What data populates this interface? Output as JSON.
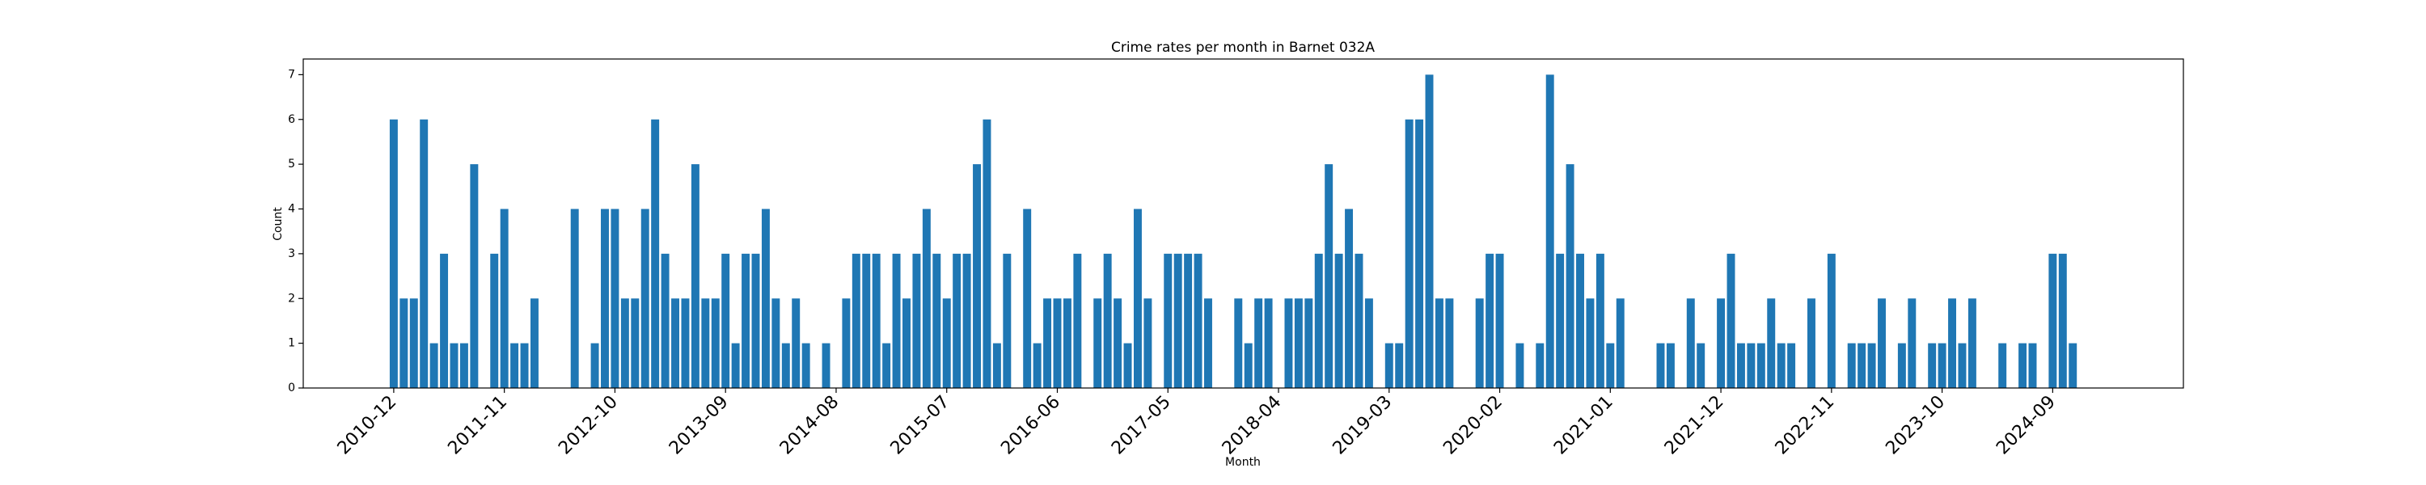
{
  "chart_data": {
    "type": "bar",
    "title": "Crime rates per month in Barnet 032A",
    "xlabel": "Month",
    "ylabel": "Count",
    "color": "#1f77b4",
    "categories": [
      "2010-12",
      null,
      null,
      null,
      null,
      null,
      null,
      null,
      null,
      null,
      null,
      "2011-11",
      null,
      null,
      null,
      null,
      null,
      null,
      null,
      null,
      null,
      null,
      "2012-10",
      null,
      null,
      null,
      null,
      null,
      null,
      null,
      null,
      null,
      null,
      "2013-09",
      null,
      null,
      null,
      null,
      null,
      null,
      null,
      null,
      null,
      null,
      "2014-08",
      null,
      null,
      null,
      null,
      null,
      null,
      null,
      null,
      null,
      null,
      "2015-07",
      null,
      null,
      null,
      null,
      null,
      null,
      null,
      null,
      null,
      null,
      "2016-06",
      null,
      null,
      null,
      null,
      null,
      null,
      null,
      null,
      null,
      null,
      "2017-05",
      null,
      null,
      null,
      null,
      null,
      null,
      null,
      null,
      null,
      null,
      "2018-04",
      null,
      null,
      null,
      null,
      null,
      null,
      null,
      null,
      null,
      null,
      "2019-03",
      null,
      null,
      null,
      null,
      null,
      null,
      null,
      null,
      null,
      null,
      "2020-02",
      null,
      null,
      null,
      null,
      null,
      null,
      null,
      null,
      null,
      null,
      "2021-01",
      null,
      null,
      null,
      null,
      null,
      null,
      null,
      null,
      null,
      null,
      "2021-12",
      null,
      null,
      null,
      null,
      null,
      null,
      null,
      null,
      null,
      null,
      "2022-11",
      null,
      null,
      null,
      null,
      null,
      null,
      null,
      null,
      null,
      null,
      "2023-10",
      null,
      null,
      null,
      null,
      null,
      null,
      null,
      null,
      null,
      null,
      "2024-09",
      null,
      null
    ],
    "values": [
      6,
      2,
      2,
      6,
      1,
      3,
      1,
      1,
      5,
      null,
      3,
      4,
      1,
      1,
      2,
      null,
      null,
      null,
      4,
      null,
      1,
      4,
      4,
      2,
      2,
      4,
      6,
      3,
      2,
      2,
      5,
      2,
      2,
      3,
      1,
      3,
      3,
      4,
      2,
      1,
      2,
      1,
      null,
      1,
      null,
      2,
      3,
      3,
      3,
      1,
      3,
      2,
      3,
      4,
      3,
      2,
      3,
      3,
      5,
      6,
      1,
      3,
      null,
      4,
      1,
      2,
      2,
      2,
      3,
      null,
      2,
      3,
      2,
      1,
      4,
      2,
      null,
      3,
      3,
      3,
      3,
      2,
      null,
      null,
      2,
      1,
      2,
      2,
      null,
      2,
      2,
      2,
      3,
      5,
      3,
      4,
      3,
      2,
      null,
      1,
      1,
      6,
      6,
      7,
      2,
      2,
      null,
      null,
      2,
      3,
      3,
      null,
      1,
      null,
      1,
      7,
      3,
      5,
      3,
      2,
      3,
      1,
      2,
      null,
      null,
      null,
      1,
      1,
      null,
      2,
      1,
      null,
      2,
      3,
      1,
      1,
      1,
      2,
      1,
      1,
      null,
      2,
      null,
      3,
      null,
      1,
      1,
      1,
      2,
      null,
      1,
      2,
      null,
      1,
      1,
      2,
      1,
      2,
      null,
      null,
      1,
      null,
      1,
      1,
      null,
      3,
      3,
      1
    ],
    "ylim": [
      0,
      7.35
    ],
    "yticks": [
      0,
      1,
      2,
      3,
      4,
      5,
      6,
      7
    ]
  }
}
